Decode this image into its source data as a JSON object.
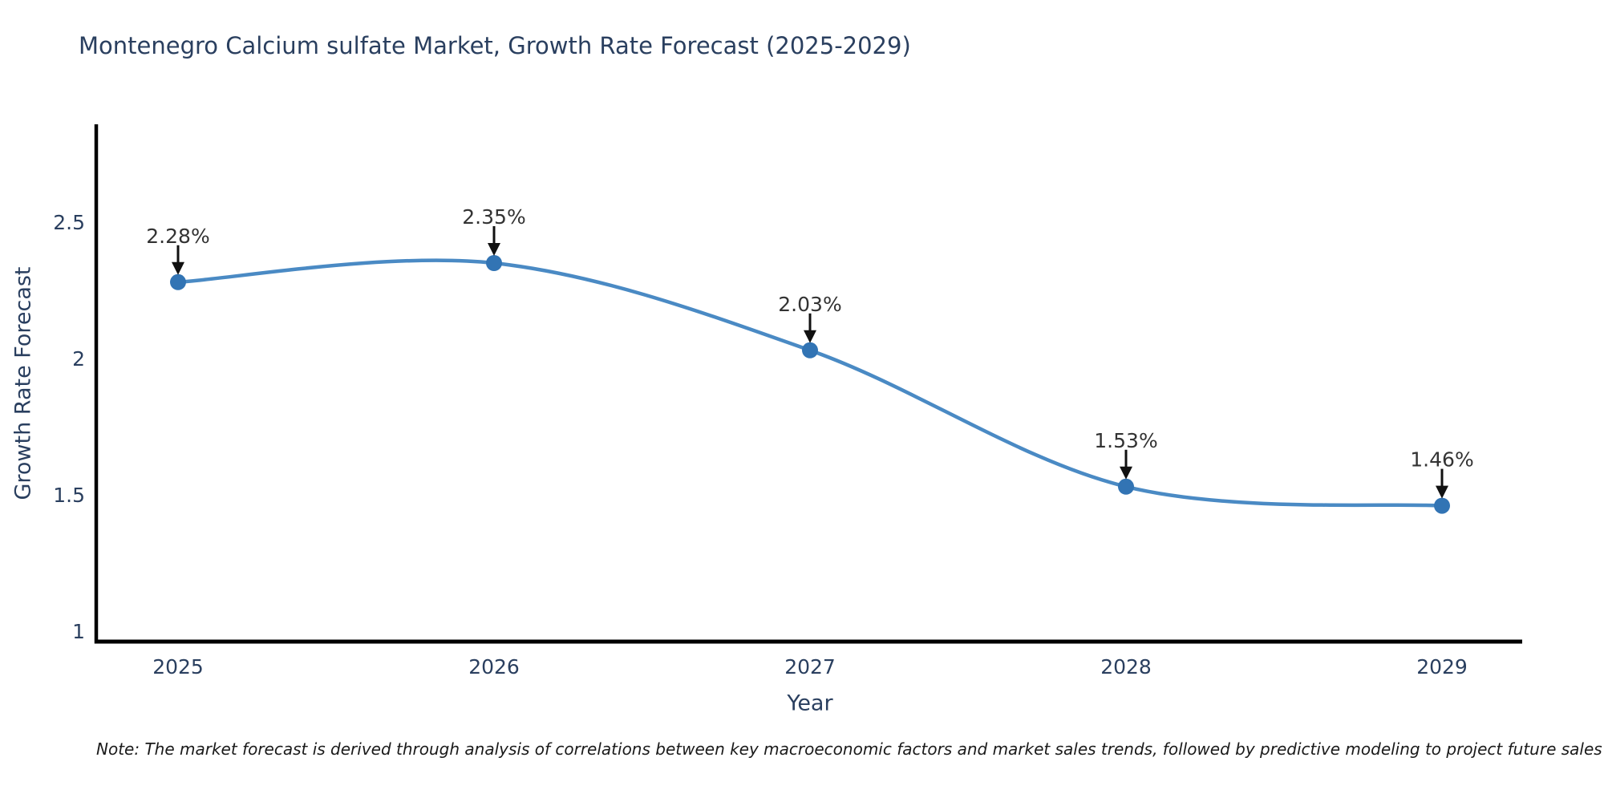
{
  "title": "Montenegro Calcium sulfate Market, Growth Rate Forecast (2025-2029)",
  "note": "Note: The market forecast is derived through analysis of correlations between key macroeconomic factors and market sales trends, followed by predictive modeling to project future sales",
  "chart_data": {
    "type": "line",
    "line_shape": "spline",
    "title": "Montenegro Calcium sulfate Market, Growth Rate Forecast (2025-2029)",
    "xlabel": "Year",
    "ylabel": "Growth Rate Forecast",
    "categories": [
      "2025",
      "2026",
      "2027",
      "2028",
      "2029"
    ],
    "series": [
      {
        "name": "Growth Rate Forecast",
        "values": [
          2.28,
          2.35,
          2.03,
          1.53,
          1.46
        ]
      }
    ],
    "point_labels": [
      "2.28%",
      "2.35%",
      "2.03%",
      "1.53%",
      "1.46%"
    ],
    "y_ticks": [
      1,
      1.5,
      2,
      2.5
    ],
    "y_tick_labels": [
      "1",
      "1.5",
      "2",
      "2.5"
    ],
    "ylim": [
      0.96,
      2.86
    ],
    "grid": false,
    "legend": "none",
    "annotations_have_arrows": true,
    "colors": {
      "line": "#4a8ac4",
      "marker": "#3274b4",
      "axis_line": "#000000",
      "axis_text": "#2a3f5f",
      "annotation_text": "#333333",
      "arrow": "#111111",
      "background": "#ffffff"
    }
  }
}
